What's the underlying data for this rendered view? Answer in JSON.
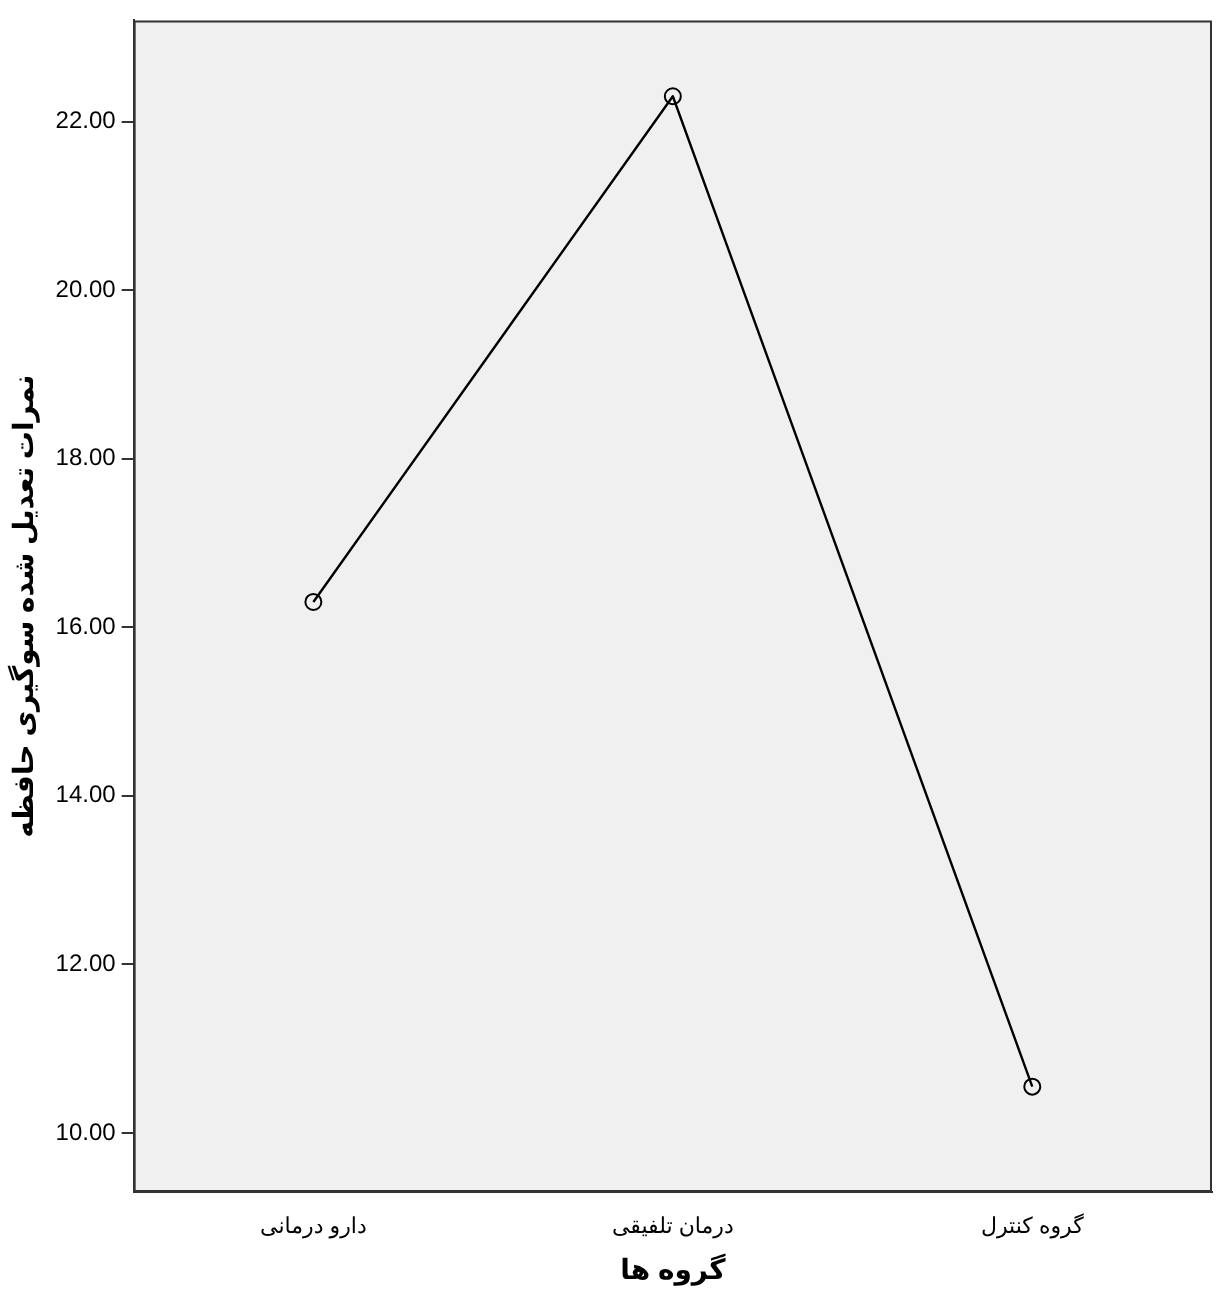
{
  "chart_data": {
    "type": "line",
    "xlabel": "گروه ها",
    "ylabel": "نمرات تعدیل شده سوگیری حافظه",
    "categories": [
      "دارو درمانی",
      "درمان تلفیقی",
      "گروه کنترل"
    ],
    "series": [
      {
        "color": "#000000",
        "values": [
          16.3,
          22.3,
          10.55
        ]
      }
    ],
    "ylim": [
      9.3,
      23.2
    ],
    "yticks": [
      {
        "value": 10,
        "label": "10.00"
      },
      {
        "value": 12,
        "label": "12.00"
      },
      {
        "value": 14,
        "label": "14.00"
      },
      {
        "value": 16,
        "label": "16.00"
      },
      {
        "value": 18,
        "label": "18.00"
      },
      {
        "value": 20,
        "label": "20.00"
      },
      {
        "value": 22,
        "label": "22.00"
      }
    ],
    "grid": false,
    "legend": false,
    "marker": "circle",
    "line_style": "solid"
  }
}
